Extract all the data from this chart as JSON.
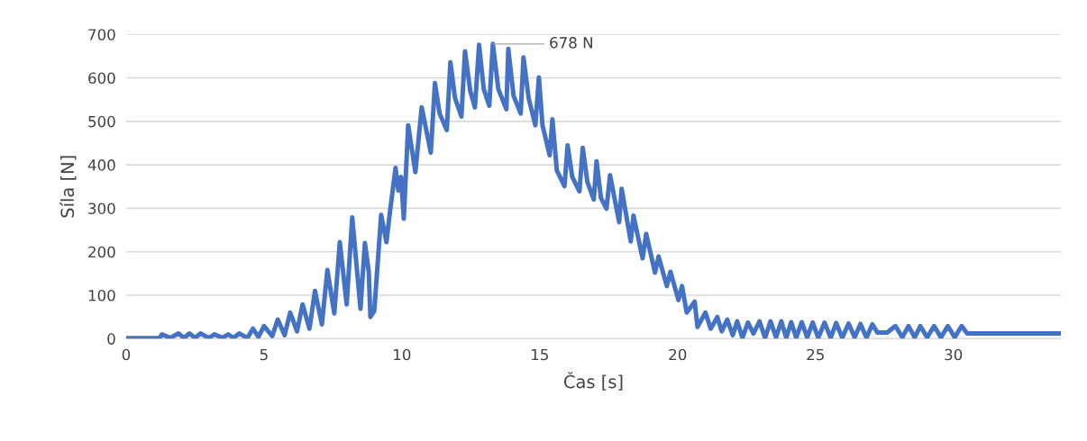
{
  "chart_data": {
    "type": "line",
    "xlabel": "Čas [s]",
    "ylabel": "Síla [N]",
    "xlim": [
      0,
      33.9
    ],
    "xticks": [
      0,
      5,
      10,
      15,
      20,
      25,
      30
    ],
    "ylim": [
      0,
      700
    ],
    "yticks": [
      0,
      100,
      200,
      300,
      400,
      500,
      600,
      700
    ],
    "grid": "y",
    "annotations": [
      {
        "text": "678 N",
        "x": 13.3,
        "y": 678
      }
    ],
    "series": [
      {
        "color": "#4472c4",
        "x": [
          0,
          1.2,
          1.3,
          1.6,
          1.9,
          2.1,
          2.3,
          2.5,
          2.7,
          3.0,
          3.2,
          3.5,
          3.7,
          3.9,
          4.1,
          4.4,
          4.6,
          4.8,
          5.0,
          5.3,
          5.5,
          5.75,
          5.95,
          6.2,
          6.4,
          6.65,
          6.85,
          7.1,
          7.3,
          7.55,
          7.75,
          8.0,
          8.2,
          8.5,
          8.66,
          8.8,
          8.86,
          9.0,
          9.25,
          9.44,
          9.58,
          9.77,
          9.87,
          9.97,
          10.07,
          10.23,
          10.49,
          10.72,
          11.05,
          11.2,
          11.37,
          11.63,
          11.76,
          11.93,
          12.16,
          12.29,
          12.48,
          12.65,
          12.8,
          12.97,
          13.17,
          13.3,
          13.5,
          13.79,
          13.86,
          14.05,
          14.31,
          14.41,
          14.6,
          14.84,
          14.97,
          15.1,
          15.36,
          15.46,
          15.62,
          15.9,
          16.01,
          16.18,
          16.44,
          16.56,
          16.73,
          16.96,
          17.06,
          17.22,
          17.42,
          17.55,
          17.88,
          17.97,
          18.3,
          18.4,
          18.73,
          18.86,
          19.18,
          19.31,
          19.61,
          19.74,
          20.03,
          20.16,
          20.33,
          20.62,
          20.72,
          21.01,
          21.2,
          21.44,
          21.6,
          21.8,
          22.0,
          22.16,
          22.35,
          22.55,
          22.75,
          22.97,
          23.17,
          23.37,
          23.57,
          23.76,
          23.94,
          24.12,
          24.3,
          24.5,
          24.7,
          24.9,
          25.1,
          25.33,
          25.55,
          25.75,
          25.97,
          26.2,
          26.42,
          26.63,
          26.85,
          27.06,
          27.25,
          27.6,
          27.9,
          28.15,
          28.37,
          28.6,
          28.8,
          29.05,
          29.3,
          29.55,
          29.8,
          30.05,
          30.3,
          30.5,
          33.9
        ],
        "values": [
          1,
          1,
          10,
          2,
          12,
          2,
          12,
          2,
          12,
          2,
          10,
          2,
          10,
          2,
          12,
          2,
          23,
          4,
          29,
          6,
          44,
          8,
          60,
          17,
          79,
          23,
          110,
          33,
          158,
          58,
          222,
          79,
          279,
          69,
          220,
          154,
          50,
          64,
          285,
          222,
          297,
          393,
          341,
          372,
          276,
          491,
          383,
          532,
          428,
          588,
          518,
          480,
          636,
          553,
          511,
          661,
          570,
          532,
          676,
          574,
          536,
          678,
          574,
          528,
          667,
          559,
          518,
          647,
          553,
          491,
          601,
          491,
          422,
          505,
          387,
          351,
          445,
          372,
          339,
          439,
          360,
          320,
          408,
          324,
          299,
          376,
          268,
          345,
          224,
          283,
          185,
          241,
          152,
          189,
          121,
          154,
          89,
          121,
          60,
          85,
          27,
          60,
          23,
          50,
          17,
          44,
          8,
          40,
          2,
          37,
          12,
          40,
          2,
          40,
          3,
          40,
          2,
          38,
          2,
          38,
          3,
          37,
          2,
          37,
          2,
          36,
          2,
          35,
          3,
          34,
          2,
          33,
          14,
          14,
          29,
          3,
          29,
          3,
          29,
          3,
          29,
          3,
          29,
          3,
          29,
          12,
          12
        ]
      }
    ]
  }
}
